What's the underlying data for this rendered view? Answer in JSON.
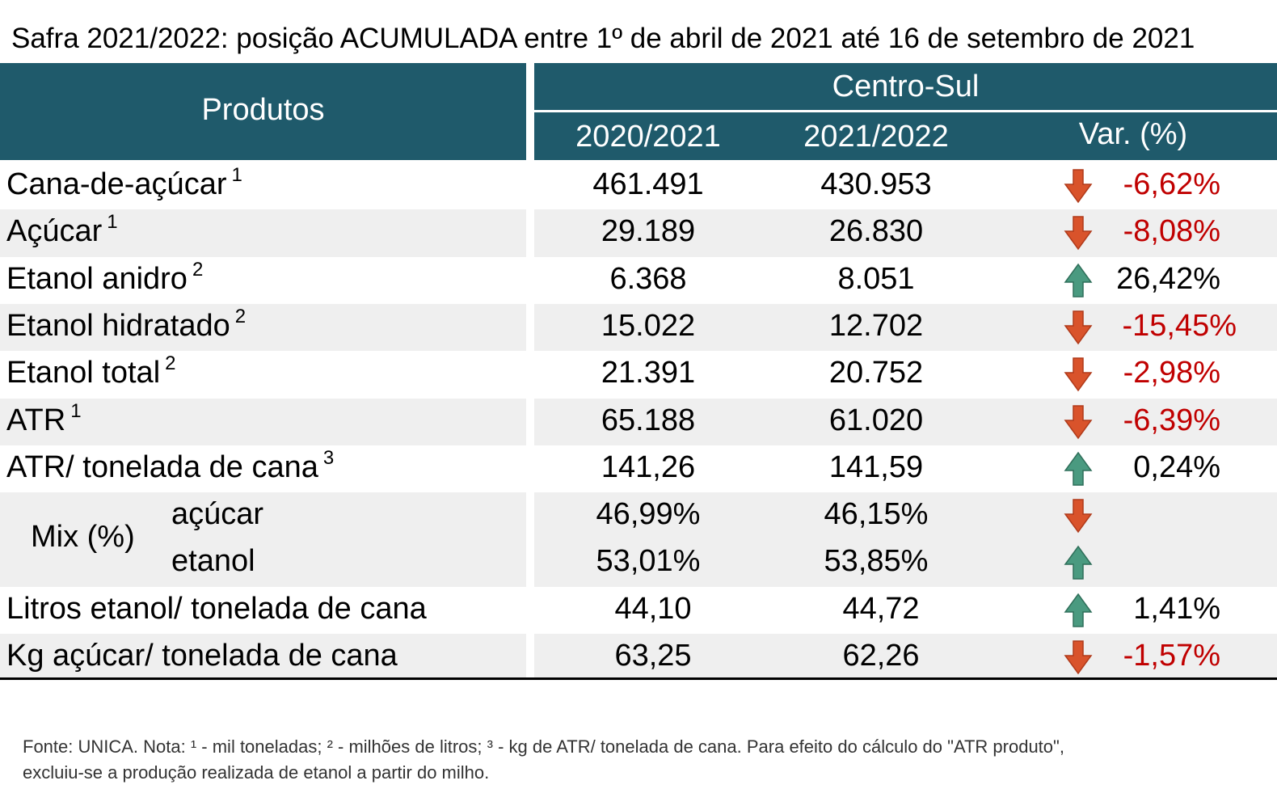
{
  "title": "Safra 2021/2022: posição ACUMULADA entre 1º de abril de 2021 até 16 de setembro de 2021",
  "header": {
    "produtos": "Produtos",
    "region": "Centro-Sul",
    "col1": "2020/2021",
    "col2": "2021/2022",
    "col3": "Var. (%)"
  },
  "rows": [
    {
      "label": "Cana-de-açúcar",
      "sup": "1",
      "v2020": "461.491",
      "v2021": "430.953",
      "var": "-6,62%",
      "trend": "down"
    },
    {
      "label": "Açúcar",
      "sup": "1",
      "v2020": "29.189",
      "v2021": "26.830",
      "var": "-8,08%",
      "trend": "down"
    },
    {
      "label": "Etanol anidro",
      "sup": "2",
      "v2020": "6.368",
      "v2021": "8.051",
      "var": "26,42%",
      "trend": "up"
    },
    {
      "label": "Etanol hidratado",
      "sup": "2",
      "v2020": "15.022",
      "v2021": "12.702",
      "var": "-15,45%",
      "trend": "down"
    },
    {
      "label": "Etanol total",
      "sup": "2",
      "v2020": "21.391",
      "v2021": "20.752",
      "var": "-2,98%",
      "trend": "down"
    },
    {
      "label": "ATR",
      "sup": "1",
      "v2020": "65.188",
      "v2021": "61.020",
      "var": "-6,39%",
      "trend": "down"
    },
    {
      "label": "ATR/ tonelada de cana",
      "sup": "3",
      "v2020": "141,26",
      "v2021": "141,59",
      "var": "0,24%",
      "trend": "up"
    },
    {
      "label": "Litros etanol/ tonelada de cana",
      "sup": "",
      "v2020": "44,10",
      "v2021": "44,72",
      "var": "1,41%",
      "trend": "up"
    },
    {
      "label": "Kg açúcar/ tonelada de cana",
      "sup": "",
      "v2020": "63,25",
      "v2021": "62,26",
      "var": "-1,57%",
      "trend": "down"
    }
  ],
  "mix": {
    "label": "Mix (%)",
    "acucar": {
      "label": "açúcar",
      "v2020": "46,99%",
      "v2021": "46,15%",
      "trend": "down"
    },
    "etanol": {
      "label": "etanol",
      "v2020": "53,01%",
      "v2021": "53,85%",
      "trend": "up"
    }
  },
  "footnote": {
    "line1": "Fonte: UNICA. Nota: ¹ - mil toneladas; ² - milhões de litros; ³ - kg de ATR/ tonelada de cana. Para efeito do cálculo do \"ATR produto\",",
    "line2": "excluiu-se a produção realizada de etanol a partir do milho."
  },
  "colors": {
    "header": "#1f5a6b",
    "negative": "#c00000",
    "arrow_down": "#d9532b",
    "arrow_up": "#4a9a80",
    "shade": "#efefef"
  },
  "chart_data": {
    "type": "table",
    "title": "Safra 2021/2022: posição ACUMULADA entre 1º de abril de 2021 até 16 de setembro de 2021",
    "columns": [
      "Produtos",
      "2020/2021",
      "2021/2022",
      "Var. (%)"
    ],
    "rows": [
      [
        "Cana-de-açúcar",
        461.491,
        430.953,
        -6.62
      ],
      [
        "Açúcar",
        29.189,
        26.83,
        -8.08
      ],
      [
        "Etanol anidro",
        6.368,
        8.051,
        26.42
      ],
      [
        "Etanol hidratado",
        15.022,
        12.702,
        -15.45
      ],
      [
        "Etanol total",
        21.391,
        20.752,
        -2.98
      ],
      [
        "ATR",
        65.188,
        61.02,
        -6.39
      ],
      [
        "ATR/ tonelada de cana",
        141.26,
        141.59,
        0.24
      ],
      [
        "Mix (%) açúcar",
        46.99,
        46.15,
        null
      ],
      [
        "Mix (%) etanol",
        53.01,
        53.85,
        null
      ],
      [
        "Litros etanol/ tonelada de cana",
        44.1,
        44.72,
        1.41
      ],
      [
        "Kg açúcar/ tonelada de cana",
        63.25,
        62.26,
        -1.57
      ]
    ]
  }
}
